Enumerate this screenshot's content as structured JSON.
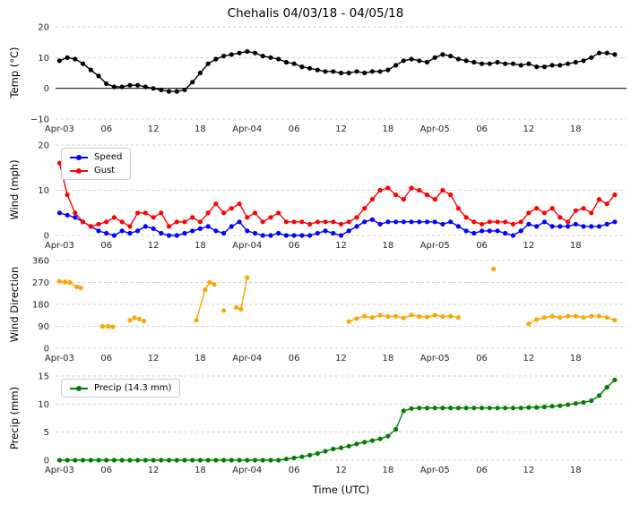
{
  "title": "Chehalis 04/03/18 - 04/05/18",
  "xlabel": "Time (UTC)",
  "x_ticks": {
    "hours": [
      0,
      6,
      12,
      18,
      24,
      30,
      36,
      42,
      48,
      54,
      60,
      66
    ],
    "labels": [
      "Apr-03",
      "06",
      "12",
      "18",
      "Apr-04",
      "06",
      "12",
      "18",
      "Apr-05",
      "06",
      "12",
      "18"
    ]
  },
  "style": {
    "grid_color": "#c0c0c0",
    "tick_color": "#262626",
    "background": "#ffffff"
  },
  "chart_data": [
    {
      "type": "line",
      "name": "temperature",
      "ylabel": "Temp (°C)",
      "ylim": [
        -10,
        20
      ],
      "yticks": [
        -10,
        0,
        10,
        20
      ],
      "zero_line": true,
      "x_unit": "hours from Apr-03 00:00 UTC",
      "series": [
        {
          "name": "Temp",
          "color": "#000000",
          "values": [
            9,
            10,
            9.5,
            8,
            6,
            4,
            1.5,
            0.5,
            0.5,
            1,
            1,
            0.5,
            0,
            -0.5,
            -1,
            -1,
            -0.5,
            2,
            5,
            8,
            9.5,
            10.5,
            11,
            11.5,
            12,
            11.5,
            10.5,
            10,
            9.5,
            8.5,
            8,
            7,
            6.5,
            6,
            5.5,
            5.5,
            5,
            5,
            5.5,
            5,
            5.5,
            5.5,
            6,
            7.5,
            9,
            9.5,
            9,
            8.5,
            10,
            11,
            10.5,
            9.5,
            9,
            8.5,
            8,
            8,
            8.5,
            8,
            8,
            7.5,
            8,
            7,
            7,
            7.5,
            7.5,
            8,
            8.5,
            9,
            10,
            11.5,
            11.5,
            11
          ]
        }
      ]
    },
    {
      "type": "line",
      "name": "wind",
      "ylabel": "Wind (mph)",
      "ylim": [
        0,
        20
      ],
      "yticks": [
        0,
        10,
        20
      ],
      "legend_position": "upper-left",
      "series": [
        {
          "name": "Speed",
          "color": "#0000ff",
          "values": [
            5,
            4.5,
            4,
            3,
            2,
            1,
            0.5,
            0,
            1,
            0.5,
            1,
            2,
            1.5,
            0.5,
            0,
            0,
            0.5,
            1,
            1.5,
            2,
            1,
            0.5,
            2,
            3,
            1,
            0.5,
            0,
            0,
            0.5,
            0,
            0,
            0,
            0,
            0.5,
            1,
            0.5,
            0,
            1,
            2,
            3,
            3.5,
            2.5,
            3,
            3,
            3,
            3,
            3,
            3,
            3,
            2.5,
            3,
            2,
            1,
            0.5,
            1,
            1,
            1,
            0.5,
            0,
            1,
            2.5,
            2,
            3,
            2,
            2,
            2,
            2.5,
            2,
            2,
            2,
            2.5,
            3
          ]
        },
        {
          "name": "Gust",
          "color": "#ff0000",
          "values": [
            16,
            9,
            5,
            3,
            2,
            2.5,
            3,
            4,
            3,
            2,
            5,
            5,
            4,
            5,
            2,
            3,
            3,
            4,
            3,
            5,
            7,
            5,
            6,
            7,
            4,
            5,
            3,
            4,
            5,
            3,
            3,
            3,
            2.5,
            3,
            3,
            3,
            2.5,
            3,
            4,
            6,
            8,
            10,
            10.5,
            9,
            8,
            10.5,
            10,
            9,
            8,
            10,
            9,
            6,
            4,
            3,
            2.5,
            3,
            3,
            3,
            2.5,
            3,
            5,
            6,
            5,
            6,
            4,
            3,
            5.5,
            6,
            5,
            8,
            7,
            9
          ]
        }
      ]
    },
    {
      "type": "scatter",
      "name": "wind-direction",
      "ylabel": "Wind Direction",
      "ylim": [
        0,
        360
      ],
      "yticks": [
        0,
        90,
        180,
        270,
        360
      ],
      "series": [
        {
          "name": "Direction",
          "color": "#ffa500",
          "connect_gap": 1.15,
          "points": [
            [
              0,
              275
            ],
            [
              0.7,
              272
            ],
            [
              1.3,
              270
            ],
            [
              2.2,
              252
            ],
            [
              2.7,
              248
            ],
            [
              5.5,
              90
            ],
            [
              6.2,
              90
            ],
            [
              6.8,
              88
            ],
            [
              9,
              115
            ],
            [
              9.6,
              125
            ],
            [
              10.2,
              120
            ],
            [
              10.8,
              112
            ],
            [
              17.5,
              115
            ],
            [
              18.6,
              240
            ],
            [
              19.2,
              270
            ],
            [
              19.8,
              262
            ],
            [
              21,
              155
            ],
            [
              22.6,
              168
            ],
            [
              23.2,
              160
            ],
            [
              24,
              290
            ],
            [
              37,
              110
            ],
            [
              38,
              122
            ],
            [
              39,
              132
            ],
            [
              40,
              126
            ],
            [
              41,
              136
            ],
            [
              42,
              130
            ],
            [
              43,
              132
            ],
            [
              44,
              124
            ],
            [
              45,
              136
            ],
            [
              46,
              130
            ],
            [
              47,
              128
            ],
            [
              48,
              136
            ],
            [
              49,
              130
            ],
            [
              50,
              132
            ],
            [
              51,
              126
            ],
            [
              55.5,
              325
            ],
            [
              60,
              100
            ],
            [
              61,
              118
            ],
            [
              62,
              126
            ],
            [
              63,
              132
            ],
            [
              64,
              126
            ],
            [
              65,
              132
            ],
            [
              66,
              132
            ],
            [
              67,
              126
            ],
            [
              68,
              132
            ],
            [
              69,
              132
            ],
            [
              70,
              126
            ],
            [
              71,
              115
            ]
          ]
        }
      ]
    },
    {
      "type": "line",
      "name": "precipitation",
      "ylabel": "Precip (mm)",
      "ylim": [
        0,
        15
      ],
      "yticks": [
        0,
        5,
        10,
        15
      ],
      "legend_position": "upper-left",
      "total_mm": 14.3,
      "series": [
        {
          "name": "Precip (14.3 mm)",
          "color": "#008000",
          "values": [
            0,
            0,
            0,
            0,
            0,
            0,
            0,
            0,
            0,
            0,
            0,
            0,
            0,
            0,
            0,
            0,
            0,
            0,
            0,
            0,
            0,
            0,
            0,
            0,
            0,
            0,
            0,
            0,
            0,
            0.2,
            0.4,
            0.6,
            0.9,
            1.2,
            1.6,
            2,
            2.2,
            2.5,
            2.9,
            3.2,
            3.5,
            3.8,
            4.3,
            5.5,
            8.8,
            9.2,
            9.3,
            9.3,
            9.3,
            9.3,
            9.3,
            9.3,
            9.3,
            9.3,
            9.3,
            9.3,
            9.3,
            9.3,
            9.3,
            9.3,
            9.4,
            9.4,
            9.5,
            9.6,
            9.7,
            9.9,
            10.1,
            10.3,
            10.6,
            11.5,
            13,
            14.3
          ]
        }
      ]
    }
  ]
}
